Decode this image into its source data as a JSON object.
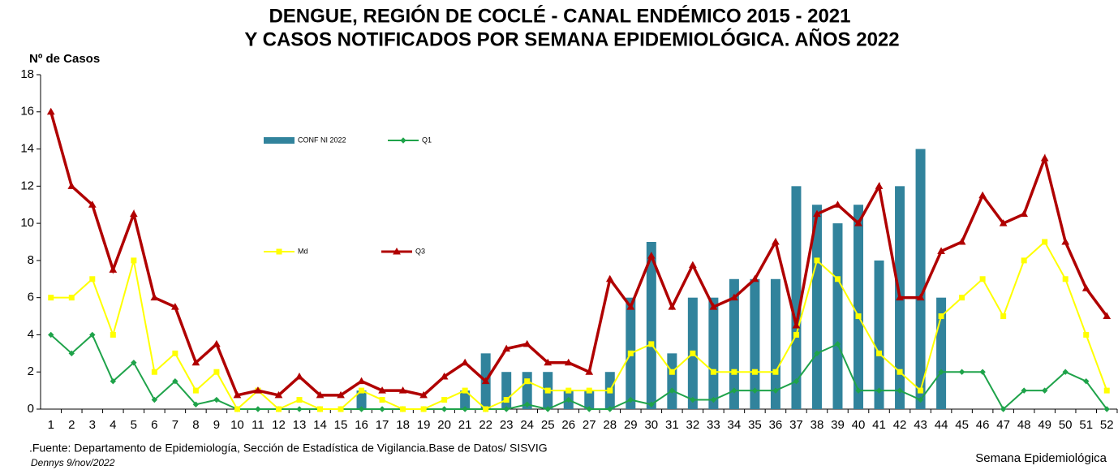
{
  "chart_data": {
    "type": "combo",
    "title": [
      "DENGUE, REGIÓN DE COCLÉ - CANAL ENDÉMICO 2015 - 2021",
      "Y CASOS NOTIFICADOS POR SEMANA EPIDEMIOLÓGICA. AÑOS 2022"
    ],
    "y_label": "Nº de Casos",
    "x_label": "Semana Epidemiológica",
    "source": ".Fuente: Departamento de Epidemiología, Sección de Estadística de Vigilancia.Base de Datos/ SISVIG",
    "author": "Dennys 9/nov/2022",
    "categories": [
      "1",
      "2",
      "3",
      "4",
      "5",
      "6",
      "7",
      "8",
      "9",
      "10",
      "11",
      "12",
      "13",
      "14",
      "15",
      "16",
      "17",
      "18",
      "19",
      "20",
      "21",
      "22",
      "23",
      "24",
      "25",
      "26",
      "27",
      "28",
      "29",
      "30",
      "31",
      "32",
      "33",
      "34",
      "35",
      "36",
      "37",
      "38",
      "39",
      "40",
      "41",
      "42",
      "43",
      "44",
      "45",
      "46",
      "47",
      "48",
      "49",
      "50",
      "51",
      "52"
    ],
    "ylim": [
      0,
      18
    ],
    "yticks": [
      0,
      2,
      4,
      6,
      8,
      10,
      12,
      14,
      16,
      18
    ],
    "series": [
      {
        "name": "CONF NI 2022",
        "kind": "bar",
        "color": "#31839c",
        "values": [
          0,
          0,
          0,
          0,
          0,
          0,
          0,
          0,
          0,
          0,
          0,
          0,
          0,
          0,
          0,
          1,
          0,
          0,
          0,
          0,
          1,
          3,
          2,
          2,
          2,
          1,
          1,
          2,
          6,
          9,
          3,
          6,
          6,
          7,
          7,
          7,
          12,
          11,
          10,
          11,
          8,
          12,
          14,
          6,
          null,
          null,
          null,
          null,
          null,
          null,
          null,
          null
        ]
      },
      {
        "name": "Q1",
        "kind": "line",
        "marker": "diamond",
        "color": "#1fa34a",
        "values": [
          4,
          3,
          4,
          1.5,
          2.5,
          0.5,
          1.5,
          0.25,
          0.5,
          0,
          0,
          0,
          0,
          0,
          0,
          0,
          0,
          0,
          0,
          0,
          0,
          0,
          0,
          0.25,
          0,
          0.5,
          0,
          0,
          0.5,
          0.25,
          1,
          0.5,
          0.5,
          1,
          1,
          1,
          1.5,
          3,
          3.5,
          1,
          1,
          1,
          0.5,
          2,
          2,
          2,
          0,
          1,
          1,
          2,
          1.5,
          0
        ]
      },
      {
        "name": "Md",
        "kind": "line",
        "marker": "square",
        "color": "#ffff00",
        "values": [
          6,
          6,
          7,
          4,
          8,
          2,
          3,
          1,
          2,
          0,
          1,
          0,
          0.5,
          0,
          0,
          1,
          0.5,
          0,
          0,
          0.5,
          1,
          0,
          0.5,
          1.5,
          1,
          1,
          1,
          1,
          3,
          3.5,
          2,
          3,
          2,
          2,
          2,
          2,
          4,
          8,
          7,
          5,
          3,
          2,
          1,
          5,
          6,
          7,
          5,
          8,
          9,
          7,
          4,
          1
        ]
      },
      {
        "name": "Q3",
        "kind": "line",
        "marker": "triangle",
        "color": "#b00000",
        "values": [
          16,
          12,
          11,
          7.5,
          10.5,
          6,
          5.5,
          2.5,
          3.5,
          0.75,
          1,
          0.75,
          1.75,
          0.75,
          0.75,
          1.5,
          1,
          1,
          0.75,
          1.75,
          2.5,
          1.5,
          3.25,
          3.5,
          2.5,
          2.5,
          2,
          7,
          5.5,
          8.25,
          5.5,
          7.75,
          5.5,
          6,
          7,
          9,
          4.5,
          10.5,
          11,
          10,
          12,
          6,
          6,
          8.5,
          9,
          11.5,
          10,
          10.5,
          13.5,
          9,
          6.5,
          5
        ]
      }
    ]
  }
}
